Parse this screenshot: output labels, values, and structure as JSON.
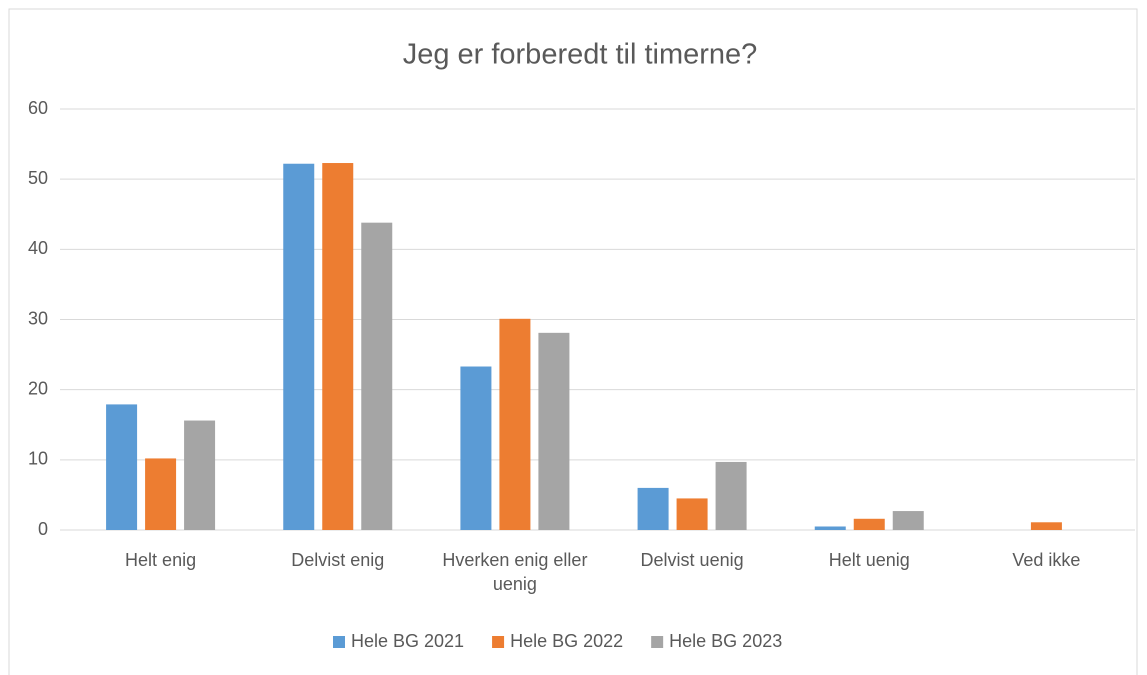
{
  "chart_data": {
    "type": "bar",
    "title": "Jeg er forberedt til timerne?",
    "categories": [
      "Helt enig",
      "Delvist enig",
      "Hverken enig eller uenig",
      "Delvist uenig",
      "Helt uenig",
      "Ved ikke"
    ],
    "series": [
      {
        "name": "Hele BG 2021",
        "color": "#5b9bd5",
        "values": [
          17.9,
          52.2,
          23.3,
          6.0,
          0.5,
          0
        ]
      },
      {
        "name": "Hele BG 2022",
        "color": "#ed7d31",
        "values": [
          10.2,
          52.3,
          30.1,
          4.5,
          1.6,
          1.1
        ]
      },
      {
        "name": "Hele BG 2023",
        "color": "#a5a5a5",
        "values": [
          15.6,
          43.8,
          28.1,
          9.7,
          2.7,
          0
        ]
      }
    ],
    "ylim": [
      0,
      60
    ],
    "yticks": [
      0,
      10,
      20,
      30,
      40,
      50,
      60
    ],
    "grid": true,
    "legend": "bottom"
  }
}
